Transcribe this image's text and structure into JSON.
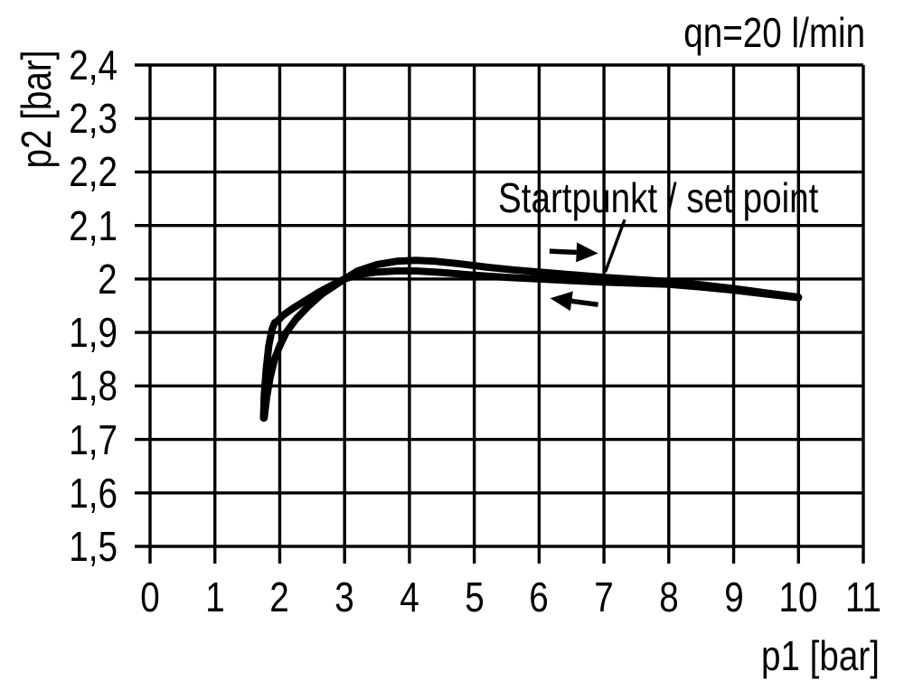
{
  "title": "qn=20 l/min",
  "chart_data": {
    "type": "line",
    "title": "qn=20 l/min",
    "xlabel": "p1 [bar]",
    "ylabel": "p2 [bar]",
    "xlim": [
      0,
      11
    ],
    "ylim": [
      1.5,
      2.4
    ],
    "grid": true,
    "legend": "none",
    "decimal_separator": ",",
    "x_ticks": [
      {
        "value": 0,
        "label": "0"
      },
      {
        "value": 1,
        "label": "1"
      },
      {
        "value": 2,
        "label": "2"
      },
      {
        "value": 3,
        "label": "3"
      },
      {
        "value": 4,
        "label": "4"
      },
      {
        "value": 5,
        "label": "5"
      },
      {
        "value": 6,
        "label": "6"
      },
      {
        "value": 7,
        "label": "7"
      },
      {
        "value": 8,
        "label": "8"
      },
      {
        "value": 9,
        "label": "9"
      },
      {
        "value": 10,
        "label": "10"
      },
      {
        "value": 11,
        "label": "11"
      }
    ],
    "y_ticks": [
      {
        "value": 2.4,
        "label": "2,4"
      },
      {
        "value": 2.3,
        "label": "2,3"
      },
      {
        "value": 2.2,
        "label": "2,2"
      },
      {
        "value": 2.1,
        "label": "2,1"
      },
      {
        "value": 2.0,
        "label": "2"
      },
      {
        "value": 1.9,
        "label": "1,9"
      },
      {
        "value": 1.8,
        "label": "1,8"
      },
      {
        "value": 1.7,
        "label": "1,7"
      },
      {
        "value": 1.6,
        "label": "1,6"
      },
      {
        "value": 1.5,
        "label": "1,5"
      }
    ],
    "series": [
      {
        "direction": "right",
        "points": [
          [
            1.76,
            1.74
          ],
          [
            1.8,
            1.78
          ],
          [
            1.85,
            1.815
          ],
          [
            1.92,
            1.85
          ],
          [
            2.0,
            1.875
          ],
          [
            2.1,
            1.9
          ],
          [
            2.25,
            1.925
          ],
          [
            2.45,
            1.95
          ],
          [
            2.65,
            1.972
          ],
          [
            2.85,
            1.988
          ],
          [
            3.0,
            2.0
          ],
          [
            3.2,
            2.015
          ],
          [
            3.5,
            2.027
          ],
          [
            3.8,
            2.033
          ],
          [
            4.1,
            2.035
          ],
          [
            4.4,
            2.033
          ],
          [
            4.8,
            2.028
          ],
          [
            5.2,
            2.022
          ],
          [
            5.6,
            2.017
          ],
          [
            6.0,
            2.013
          ],
          [
            6.5,
            2.008
          ],
          [
            7.0,
            2.003
          ],
          [
            7.5,
            1.999
          ],
          [
            8.0,
            1.995
          ],
          [
            8.5,
            1.989
          ],
          [
            9.0,
            1.982
          ],
          [
            9.5,
            1.974
          ],
          [
            10.0,
            1.966
          ]
        ]
      },
      {
        "direction": "left",
        "points": [
          [
            1.75,
            1.74
          ],
          [
            1.76,
            1.78
          ],
          [
            1.79,
            1.83
          ],
          [
            1.83,
            1.875
          ],
          [
            1.88,
            1.905
          ],
          [
            1.92,
            1.918
          ],
          [
            1.97,
            1.922
          ],
          [
            2.05,
            1.932
          ],
          [
            2.2,
            1.945
          ],
          [
            2.4,
            1.96
          ],
          [
            2.6,
            1.975
          ],
          [
            2.8,
            1.988
          ],
          [
            3.0,
            2.0
          ],
          [
            3.2,
            2.008
          ],
          [
            3.5,
            2.013
          ],
          [
            3.8,
            2.015
          ],
          [
            4.1,
            2.015
          ],
          [
            4.5,
            2.012
          ],
          [
            5.0,
            2.007
          ],
          [
            5.5,
            2.003
          ],
          [
            6.0,
            2.0
          ],
          [
            6.5,
            1.997
          ],
          [
            7.0,
            1.994
          ],
          [
            7.5,
            1.992
          ],
          [
            8.0,
            1.99
          ],
          [
            8.5,
            1.985
          ],
          [
            9.0,
            1.979
          ],
          [
            9.5,
            1.972
          ],
          [
            10.0,
            1.965
          ]
        ]
      }
    ],
    "annotations": {
      "label": "Startpunkt / set point",
      "set_point": [
        7.0,
        2.01
      ],
      "leader": {
        "from": [
          7.32,
          2.111
        ],
        "to": [
          7.02,
          2.013
        ]
      },
      "arrow_right": {
        "from": [
          6.16,
          2.052
        ],
        "to": [
          6.91,
          2.048
        ]
      },
      "arrow_left": {
        "from": [
          6.91,
          1.952
        ],
        "to": [
          6.17,
          1.964
        ]
      }
    }
  }
}
